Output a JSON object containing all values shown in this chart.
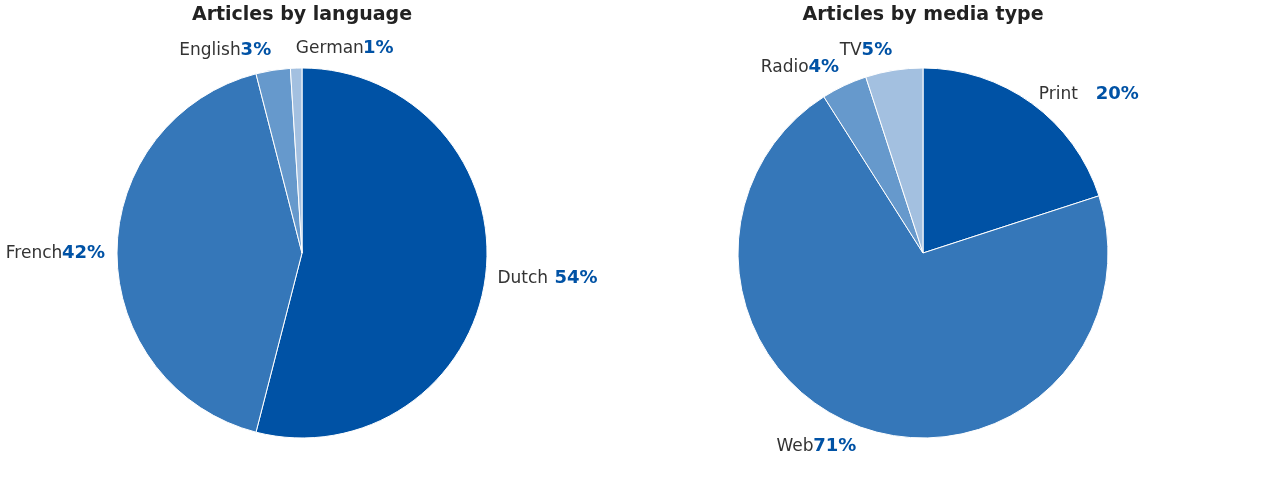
{
  "chart_data": [
    {
      "type": "pie",
      "title": "Articles by language",
      "categories": [
        "Dutch",
        "French",
        "English",
        "German"
      ],
      "values": [
        54,
        42,
        3,
        1
      ],
      "value_labels": [
        "54%",
        "42%",
        "3%",
        "1%"
      ],
      "colors": [
        "#0052a5",
        "#3577b9",
        "#6699cc",
        "#a3c0e0"
      ]
    },
    {
      "type": "pie",
      "title": "Articles by media type",
      "categories": [
        "Print",
        "Web",
        "Radio",
        "TV"
      ],
      "values": [
        20,
        71,
        4,
        5
      ],
      "value_labels": [
        "20%",
        "71%",
        "4%",
        "5%"
      ],
      "colors": [
        "#0052a5",
        "#3577b9",
        "#6699cc",
        "#a3c0e0"
      ]
    }
  ]
}
